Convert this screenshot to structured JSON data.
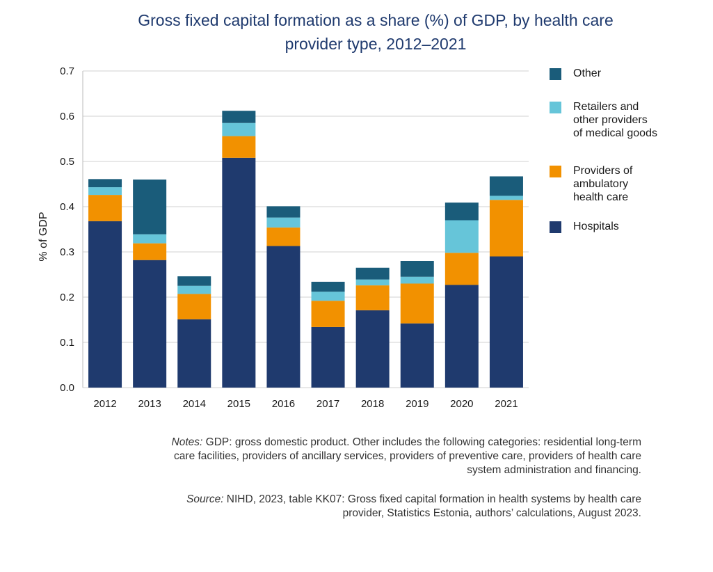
{
  "title_lines": [
    "Gross fixed capital formation as a share (%) of GDP, by health care",
    "provider type, 2012–2021"
  ],
  "notes": {
    "notes_label": "Notes:",
    "notes_text": " GDP: gross domestic product. Other includes the following categories: residential long-term care facilities, providers of ancillary services, providers of preventive care, providers of health care system administration and financing.",
    "source_label": "Source:",
    "source_text": " NIHD, 2023, table KK07: Gross fixed capital formation in health systems by health care provider, Statistics Estonia, authors’ calculations, August 2023."
  },
  "chart_data": {
    "type": "bar",
    "stacked": true,
    "title": "Gross fixed capital formation as a share (%) of GDP, by health care provider type, 2012–2021",
    "ylabel": "% of GDP",
    "xlabel": "",
    "ylim": [
      0,
      0.7
    ],
    "yticks": [
      "0.0",
      "0.1",
      "0.2",
      "0.3",
      "0.4",
      "0.5",
      "0.6",
      "0.7"
    ],
    "grid": true,
    "legend_position": "right",
    "categories": [
      "2012",
      "2013",
      "2014",
      "2015",
      "2016",
      "2017",
      "2018",
      "2019",
      "2020",
      "2021"
    ],
    "series": [
      {
        "name": "Hospitals",
        "color": "#1f3a6e",
        "values": [
          0.368,
          0.282,
          0.151,
          0.508,
          0.313,
          0.134,
          0.171,
          0.142,
          0.227,
          0.29
        ]
      },
      {
        "name": "Providers of ambulatory health care",
        "color": "#f29100",
        "values": [
          0.058,
          0.037,
          0.056,
          0.048,
          0.041,
          0.058,
          0.055,
          0.088,
          0.071,
          0.125
        ]
      },
      {
        "name": "Retailers and other providers of medical goods",
        "color": "#66c5d9",
        "values": [
          0.017,
          0.02,
          0.018,
          0.029,
          0.022,
          0.02,
          0.013,
          0.015,
          0.072,
          0.009
        ]
      },
      {
        "name": "Other",
        "color": "#1a5c7a",
        "values": [
          0.018,
          0.121,
          0.021,
          0.027,
          0.025,
          0.022,
          0.026,
          0.035,
          0.039,
          0.043
        ]
      }
    ],
    "legend_order": [
      {
        "label": "Other",
        "color": "#1a5c7a"
      },
      {
        "label": "Retailers and\nother providers\nof medical goods",
        "color": "#66c5d9"
      },
      {
        "label": "Providers of\nambulatory\nhealth care",
        "color": "#f29100"
      },
      {
        "label": "Hospitals",
        "color": "#1f3a6e"
      }
    ]
  }
}
